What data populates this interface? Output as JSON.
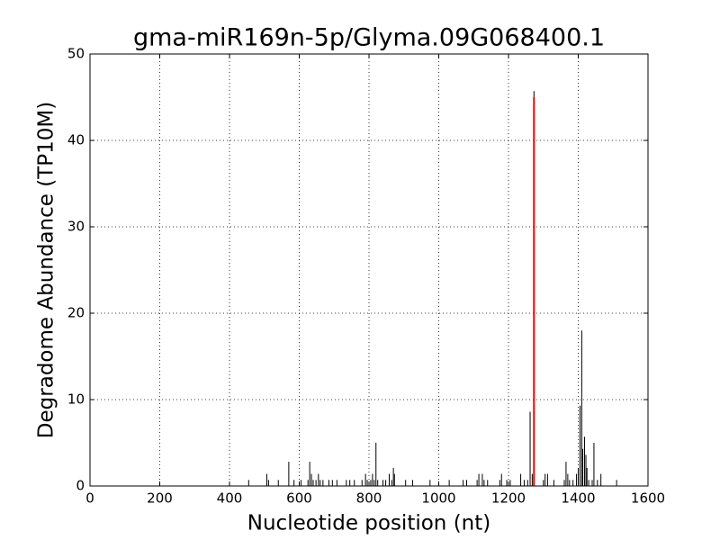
{
  "chart_data": {
    "type": "vlines",
    "title": "gma-miR169n-5p/Glyma.09G068400.1",
    "x_label": "Nucleotide position (nt)",
    "y_label": "Degradome Abundance (TP10M)",
    "xlim": [
      0,
      1600
    ],
    "xticks": [
      0,
      200,
      400,
      600,
      800,
      1000,
      1200,
      1400,
      1600
    ],
    "ylim": [
      0,
      50
    ],
    "yticks": [
      0,
      10,
      20,
      30,
      40,
      50
    ],
    "grid": true,
    "series": [
      {
        "color": "#000000",
        "width": 1,
        "x": [
          455,
          507,
          512,
          540,
          570,
          585,
          605,
          625,
          630,
          635,
          640,
          648,
          655,
          660,
          668,
          685,
          695,
          708,
          735,
          745,
          758,
          780,
          790,
          795,
          805,
          810,
          815,
          820,
          825,
          840,
          848,
          858,
          865,
          870,
          873,
          905,
          925,
          975,
          1030,
          1070,
          1080,
          1110,
          1115,
          1125,
          1130,
          1140,
          1175,
          1180,
          1195,
          1205,
          1235,
          1245,
          1255,
          1262,
          1268,
          1273,
          1300,
          1305,
          1312,
          1330,
          1360,
          1365,
          1370,
          1375,
          1385,
          1395,
          1400,
          1405,
          1410,
          1413,
          1418,
          1422,
          1425,
          1430,
          1440,
          1445,
          1455,
          1465,
          1510
        ],
        "values": [
          0.7,
          1.4,
          0.7,
          0.7,
          2.8,
          0.7,
          0.7,
          0.7,
          2.8,
          1.4,
          0.7,
          0.7,
          1.4,
          0.7,
          0.7,
          0.7,
          0.7,
          0.7,
          0.7,
          0.7,
          0.7,
          0.7,
          1.4,
          0.7,
          0.7,
          1.4,
          0.7,
          5.0,
          0.7,
          0.7,
          0.7,
          1.4,
          0.7,
          2.1,
          1.4,
          0.7,
          0.7,
          0.7,
          0.7,
          0.7,
          0.7,
          0.7,
          1.4,
          1.4,
          0.7,
          0.7,
          0.7,
          1.4,
          0.7,
          0.7,
          1.4,
          0.7,
          0.7,
          8.6,
          1.4,
          45.7,
          0.7,
          1.4,
          1.4,
          0.7,
          0.7,
          2.8,
          1.4,
          0.7,
          0.7,
          1.4,
          2.1,
          9.3,
          18.0,
          4.3,
          5.7,
          3.6,
          2.1,
          0.7,
          0.7,
          5.0,
          0.7,
          1.4,
          0.7
        ]
      },
      {
        "color": "#ff0000",
        "width": 2,
        "x": [
          1273
        ],
        "values": [
          45
        ]
      }
    ]
  }
}
